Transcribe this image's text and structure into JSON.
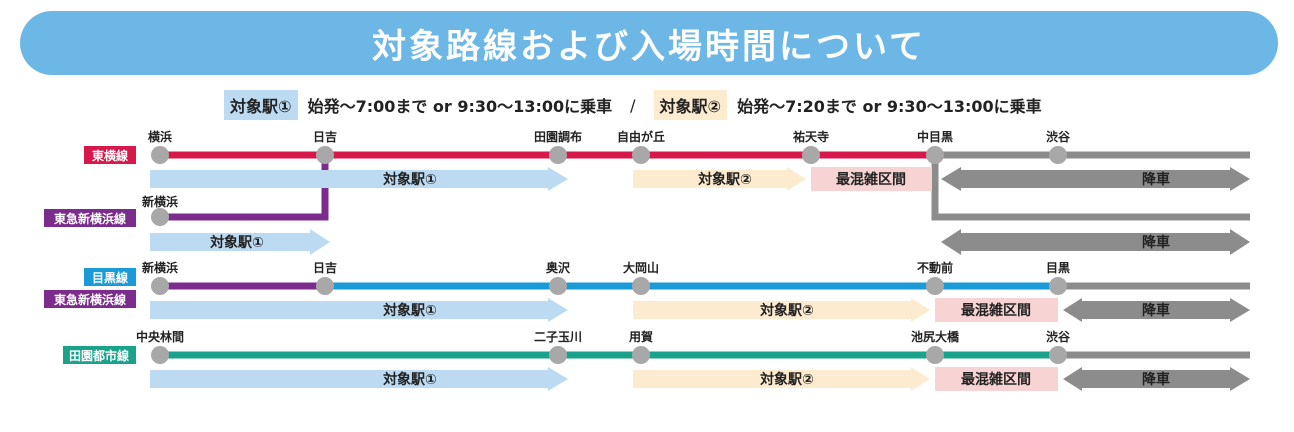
{
  "header": {
    "title": "対象路線および入場時間について"
  },
  "legend": {
    "station1_label": "対象駅①",
    "station1_desc": "始発～7:00まで or 9:30～13:00に乗車",
    "separator": "/",
    "station2_label": "対象駅②",
    "station2_desc": "始発～7:20まで or 9:30～13:00に乗車"
  },
  "colors": {
    "toyoko": "#d6184a",
    "shinyokohama": "#7b2c8c",
    "meguro": "#1a9ad6",
    "denentoshi": "#1aa38a",
    "disembark": "#8c8c8c",
    "station_dot": "#a8a8a8",
    "target1": "#bcdbf3",
    "target2": "#fdebcf",
    "busiest": "#f8d3d3"
  },
  "lines": {
    "toyoko": "東横線",
    "shinyokohama_1": "東急新横浜線",
    "meguro": "目黒線",
    "shinyokohama_2": "東急新横浜線",
    "denentoshi": "田園都市線"
  },
  "stations": {
    "yokohama": "横浜",
    "hiyoshi": "日吉",
    "denenchofu": "田園調布",
    "jiyugaoka": "自由が丘",
    "yutenji": "祐天寺",
    "nakameguro": "中目黒",
    "shibuya": "渋谷",
    "shinyokohama": "新横浜",
    "hiyoshi2": "日吉",
    "okusawa": "奥沢",
    "ookayama": "大岡山",
    "fudomae": "不動前",
    "meguro": "目黒",
    "chuorinkan": "中央林間",
    "futakotamagawa": "二子玉川",
    "yoga": "用賀",
    "ikejiriohashi": "池尻大橋",
    "shibuya2": "渋谷"
  },
  "labels": {
    "target1": "対象駅①",
    "target2": "対象駅②",
    "busiest": "最混雑区間",
    "disembark": "降車"
  }
}
